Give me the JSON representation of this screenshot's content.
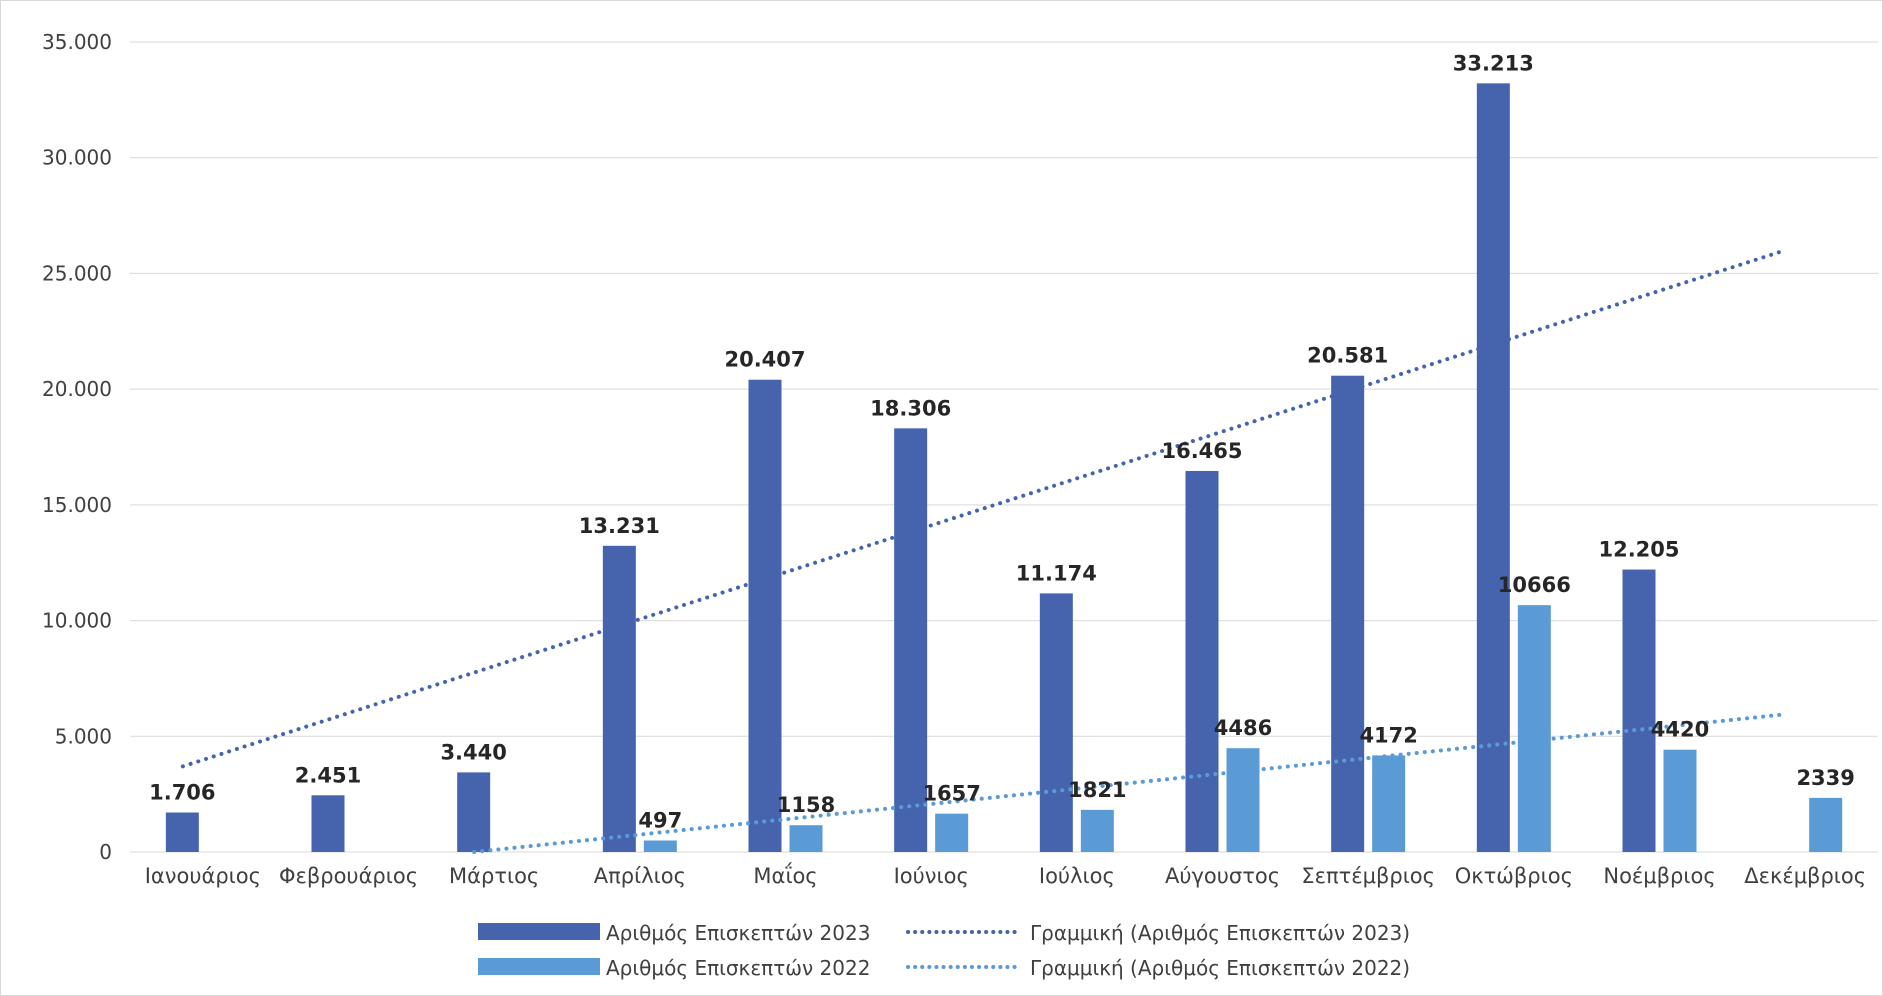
{
  "chart_data": {
    "type": "bar",
    "categories": [
      "Ιανουάριος",
      "Φεβρουάριος",
      "Μάρτιος",
      "Απρίλιος",
      "Μαΐος",
      "Ιούνιος",
      "Ιούλιος",
      "Αύγουστος",
      "Σεπτέμβριος",
      "Οκτώβριος",
      "Νοέμβριος",
      "Δεκέμβριος"
    ],
    "series": [
      {
        "name": "Αριθμός Επισκεπτών 2023",
        "color": "#4564ad",
        "values": [
          1706,
          2451,
          3440,
          13231,
          20407,
          18306,
          11174,
          16465,
          20581,
          33213,
          12205,
          null
        ],
        "labels": [
          "1.706",
          "2.451",
          "3.440",
          "13.231",
          "20.407",
          "18.306",
          "11.174",
          "16.465",
          "20.581",
          "33.213",
          "12.205",
          ""
        ]
      },
      {
        "name": "Αριθμός Επισκεπτών 2022",
        "color": "#5b9bd5",
        "values": [
          null,
          null,
          null,
          497,
          1158,
          1657,
          1821,
          4486,
          4172,
          10666,
          4420,
          2339
        ],
        "labels": [
          "",
          "",
          "",
          "497",
          "1158",
          "1657",
          "1821",
          "4486",
          "4172",
          "10666",
          "4420",
          "2339"
        ]
      }
    ],
    "trendlines": [
      {
        "name": "Γραμμική (Αριθμός Επισκεπτών 2023)",
        "color": "#4564ad",
        "from_category": 0,
        "to_category": 11,
        "start_value": 3700,
        "end_value": 26000
      },
      {
        "name": "Γραμμική (Αριθμός Επισκεπτών 2022)",
        "color": "#5b9bd5",
        "from_category": 2,
        "to_category": 11,
        "start_value": 0,
        "end_value": 5950
      }
    ],
    "yticks": [
      "0",
      "5.000",
      "10.000",
      "15.000",
      "20.000",
      "25.000",
      "30.000",
      "35.000"
    ],
    "ylim": [
      0,
      35000
    ],
    "grid": true,
    "legend_position": "bottom"
  }
}
